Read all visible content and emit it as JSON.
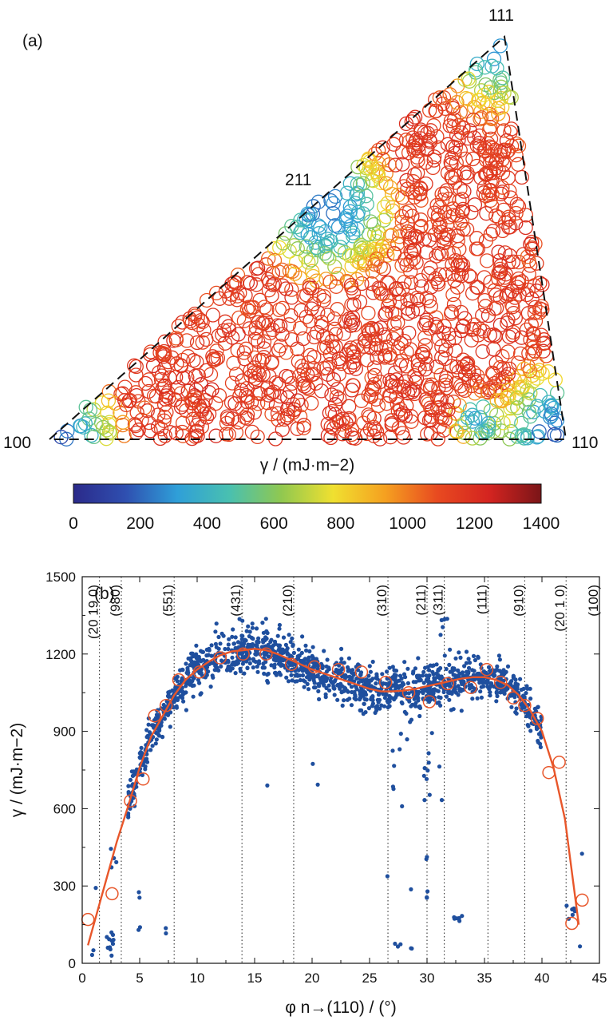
{
  "panel_a": {
    "label": "(a)",
    "corners": {
      "c111": "111",
      "c211": "211",
      "c100": "100",
      "c110": "110"
    },
    "colorbar": {
      "label": "γ / (mJ·m−2)",
      "min": 0,
      "max": 1400,
      "ticks": [
        "0",
        "200",
        "400",
        "600",
        "800",
        "1000",
        "1200",
        "1400"
      ],
      "colormap": [
        "#2b2a8a",
        "#2f4fb0",
        "#2f9fd8",
        "#49c0b0",
        "#90c850",
        "#f0e030",
        "#f5a020",
        "#e84a20",
        "#d42420",
        "#7a1518"
      ]
    }
  },
  "chart_data": [
    {
      "type": "scatter",
      "title": "",
      "description_level": "stereographic triangle colored by gamma",
      "colorbar_range": [
        0,
        1400
      ]
    },
    {
      "type": "scatter",
      "panel_label": "(b)",
      "xlabel": "φ n→(110) / (°)",
      "ylabel": "γ / (mJ·m−2)",
      "xlim": [
        0,
        45
      ],
      "ylim": [
        0,
        1500
      ],
      "xticks": [
        "0",
        "5",
        "10",
        "15",
        "20",
        "25",
        "30",
        "35",
        "40",
        "45"
      ],
      "yticks": [
        "0",
        "300",
        "600",
        "900",
        "1200",
        "1500"
      ],
      "orientations": [
        {
          "label": "(20 19 0)",
          "x": 1.5
        },
        {
          "label": "(980)",
          "x": 3.4
        },
        {
          "label": "(551)",
          "x": 8.0
        },
        {
          "label": "(431)",
          "x": 13.9
        },
        {
          "label": "(210)",
          "x": 18.4
        },
        {
          "label": "(310)",
          "x": 26.6
        },
        {
          "label": "(211)",
          "x": 30.0
        },
        {
          "label": "(311)",
          "x": 31.5
        },
        {
          "label": "(111)",
          "x": 35.3
        },
        {
          "label": "(910)",
          "x": 38.5
        },
        {
          "label": "(20 1 0)",
          "x": 42.1
        },
        {
          "label": "(100)",
          "x": 45.0
        }
      ],
      "fit_curve": {
        "color": "#e8562a",
        "x": [
          0.5,
          1,
          2,
          3,
          4,
          5,
          6,
          7,
          8,
          9,
          10,
          11,
          12,
          13,
          14,
          15,
          16,
          17,
          18,
          19,
          20,
          21,
          22,
          23,
          24,
          25,
          26,
          27,
          28,
          29,
          30,
          31,
          32,
          33,
          34,
          35,
          36,
          37,
          38,
          39,
          40,
          41,
          42,
          43.2
        ],
        "y": [
          70,
          150,
          310,
          470,
          610,
          760,
          880,
          960,
          1040,
          1100,
          1140,
          1170,
          1195,
          1210,
          1215,
          1220,
          1215,
          1200,
          1180,
          1160,
          1140,
          1125,
          1110,
          1095,
          1080,
          1065,
          1055,
          1055,
          1058,
          1065,
          1075,
          1085,
          1095,
          1105,
          1110,
          1110,
          1100,
          1080,
          1040,
          980,
          900,
          760,
          560,
          150
        ]
      },
      "open_circles": {
        "color": "#e8562a",
        "x": [
          0.5,
          2.6,
          4.2,
          5.3,
          6.3,
          7.3,
          8.4,
          10.2,
          12.0,
          14.0,
          16.0,
          18.2,
          20.2,
          22.3,
          24.3,
          26.4,
          28.4,
          30.2,
          31.8,
          33.8,
          35.2,
          36.4,
          37.5,
          38.5,
          39.6,
          40.6,
          41.5,
          42.6,
          43.5
        ],
        "y": [
          170,
          270,
          630,
          715,
          960,
          1000,
          1100,
          1130,
          1185,
          1200,
          1200,
          1160,
          1150,
          1140,
          1130,
          1090,
          1050,
          1015,
          1085,
          1070,
          1140,
          1090,
          1030,
          1000,
          950,
          740,
          780,
          155,
          245
        ]
      },
      "scatter_color": "#1f4f9e"
    }
  ]
}
